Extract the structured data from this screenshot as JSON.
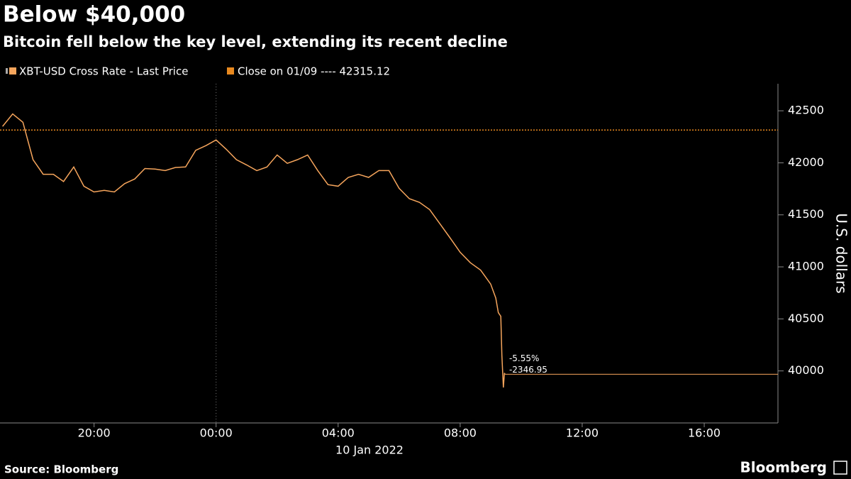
{
  "chart_data": {
    "type": "line",
    "title": "Below $40,000",
    "subtitle": "Bitcoin fell below the key level, extending its recent decline",
    "y_axis_label": "U.S. dollars",
    "x_date_label": "10 Jan 2022",
    "source": "Source: Bloomberg",
    "brand": "Bloomberg",
    "x": [
      "2022-01-09T17:00",
      "2022-01-09T17:20",
      "2022-01-09T17:40",
      "2022-01-09T18:00",
      "2022-01-09T18:20",
      "2022-01-09T18:40",
      "2022-01-09T19:00",
      "2022-01-09T19:20",
      "2022-01-09T19:40",
      "2022-01-09T20:00",
      "2022-01-09T20:20",
      "2022-01-09T20:40",
      "2022-01-09T21:00",
      "2022-01-09T21:20",
      "2022-01-09T21:40",
      "2022-01-09T22:00",
      "2022-01-09T22:20",
      "2022-01-09T22:40",
      "2022-01-09T23:00",
      "2022-01-09T23:20",
      "2022-01-09T23:40",
      "2022-01-10T00:00",
      "2022-01-10T00:20",
      "2022-01-10T00:40",
      "2022-01-10T01:00",
      "2022-01-10T01:20",
      "2022-01-10T01:40",
      "2022-01-10T02:00",
      "2022-01-10T02:20",
      "2022-01-10T02:40",
      "2022-01-10T03:00",
      "2022-01-10T03:20",
      "2022-01-10T03:40",
      "2022-01-10T04:00",
      "2022-01-10T04:20",
      "2022-01-10T04:40",
      "2022-01-10T05:00",
      "2022-01-10T05:20",
      "2022-01-10T05:40",
      "2022-01-10T06:00",
      "2022-01-10T06:20",
      "2022-01-10T06:40",
      "2022-01-10T07:00",
      "2022-01-10T07:20",
      "2022-01-10T07:40",
      "2022-01-10T08:00",
      "2022-01-10T08:20",
      "2022-01-10T08:40",
      "2022-01-10T09:00",
      "2022-01-10T09:10",
      "2022-01-10T09:15",
      "2022-01-10T09:20",
      "2022-01-10T09:22",
      "2022-01-10T09:25",
      "2022-01-10T09:27",
      "2022-01-10T09:28"
    ],
    "series": [
      {
        "name": "XBT-USD Cross Rate - Last Price",
        "color": "#f6a55c",
        "values": [
          42350,
          42470,
          42390,
          42030,
          41890,
          41890,
          41820,
          41960,
          41775,
          41720,
          41735,
          41720,
          41800,
          41845,
          41945,
          41940,
          41925,
          41955,
          41960,
          42120,
          42165,
          42220,
          42130,
          42030,
          41980,
          41925,
          41960,
          42075,
          41995,
          42030,
          42075,
          41925,
          41790,
          41775,
          41860,
          41890,
          41860,
          41925,
          41925,
          41755,
          41655,
          41620,
          41550,
          41415,
          41280,
          41140,
          41040,
          40970,
          40835,
          40700,
          40560,
          40525,
          40150,
          39840,
          39980,
          39968.17
        ]
      }
    ],
    "reference_line": {
      "name": "Close on 01/09 ---- 42315.12",
      "value": 42315.12,
      "color": "#e8891f"
    },
    "annotations": [
      "-5.55%",
      "-2346.95"
    ],
    "xlim": [
      "2022-01-09T16:55",
      "2022-01-10T18:25"
    ],
    "xticks": [
      {
        "value": "2022-01-09T20:00",
        "label": "20:00"
      },
      {
        "value": "2022-01-10T00:00",
        "label": "00:00"
      },
      {
        "value": "2022-01-10T04:00",
        "label": "04:00"
      },
      {
        "value": "2022-01-10T08:00",
        "label": "08:00"
      },
      {
        "value": "2022-01-10T12:00",
        "label": "12:00"
      },
      {
        "value": "2022-01-10T16:00",
        "label": "16:00"
      }
    ],
    "ylim": [
      39500,
      42760
    ],
    "yticks": [
      40000,
      40500,
      41000,
      41500,
      42000,
      42500
    ]
  }
}
